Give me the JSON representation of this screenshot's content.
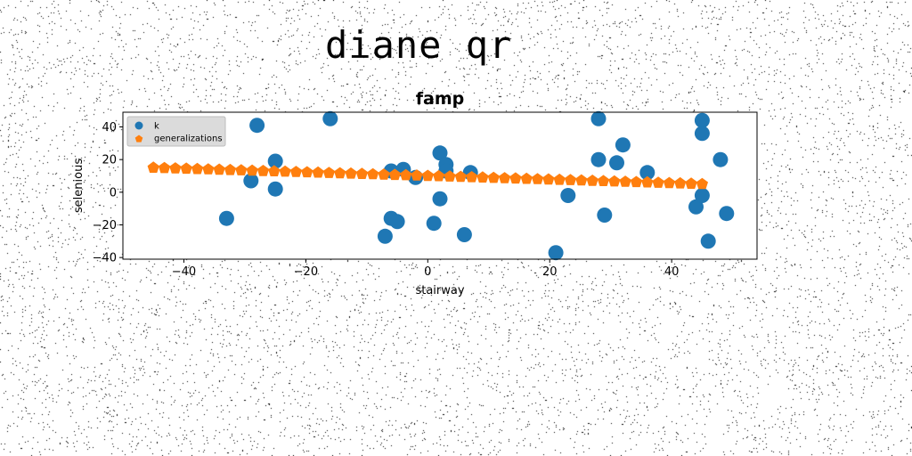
{
  "figure": {
    "suptitle": "diane qr"
  },
  "chart_data": {
    "type": "scatter",
    "title": "famp",
    "xlabel": "stairway",
    "ylabel": "selenious",
    "xlim": [
      -50,
      54
    ],
    "ylim": [
      -41,
      49
    ],
    "xticks": [
      -40,
      -20,
      0,
      20,
      40
    ],
    "yticks": [
      -40,
      -20,
      0,
      20,
      40
    ],
    "grid": false,
    "legend_position": "top-left",
    "series": [
      {
        "name": "k",
        "color": "#1f77b4",
        "marker": "circle",
        "points": [
          [
            -33,
            -16
          ],
          [
            -29,
            7
          ],
          [
            -28,
            41
          ],
          [
            -25,
            19
          ],
          [
            -25,
            2
          ],
          [
            -16,
            45
          ],
          [
            -7,
            -27
          ],
          [
            -6,
            -16
          ],
          [
            -6,
            13
          ],
          [
            -5,
            -18
          ],
          [
            -4,
            14
          ],
          [
            -2,
            9
          ],
          [
            1,
            -19
          ],
          [
            2,
            24
          ],
          [
            2,
            -4
          ],
          [
            3,
            17
          ],
          [
            3,
            13
          ],
          [
            6,
            -26
          ],
          [
            7,
            12
          ],
          [
            21,
            -37
          ],
          [
            23,
            -2
          ],
          [
            28,
            45
          ],
          [
            28,
            20
          ],
          [
            29,
            -14
          ],
          [
            31,
            18
          ],
          [
            32,
            29
          ],
          [
            36,
            12
          ],
          [
            44,
            -9
          ],
          [
            45,
            44
          ],
          [
            45,
            36
          ],
          [
            45,
            -2
          ],
          [
            46,
            -30
          ],
          [
            48,
            20
          ],
          [
            49,
            -13
          ]
        ]
      },
      {
        "name": "generalizations",
        "color": "#ff7f0e",
        "marker": "pentagon",
        "points": [
          [
            -45,
            15.0
          ],
          [
            -43.2,
            14.8
          ],
          [
            -41.4,
            14.6
          ],
          [
            -39.6,
            14.4
          ],
          [
            -37.8,
            14.2
          ],
          [
            -36,
            14.0
          ],
          [
            -34.2,
            13.8
          ],
          [
            -32.4,
            13.6
          ],
          [
            -30.6,
            13.4
          ],
          [
            -28.8,
            13.2
          ],
          [
            -27,
            13.0
          ],
          [
            -25.2,
            12.8
          ],
          [
            -23.4,
            12.6
          ],
          [
            -21.6,
            12.4
          ],
          [
            -19.8,
            12.2
          ],
          [
            -18,
            12.0
          ],
          [
            -16.2,
            11.8
          ],
          [
            -14.4,
            11.6
          ],
          [
            -12.6,
            11.4
          ],
          [
            -10.8,
            11.2
          ],
          [
            -9,
            11.0
          ],
          [
            -7.2,
            10.8
          ],
          [
            -5.4,
            10.6
          ],
          [
            -3.6,
            10.4
          ],
          [
            -1.8,
            10.2
          ],
          [
            0,
            10.0
          ],
          [
            1.8,
            9.8
          ],
          [
            3.6,
            9.6
          ],
          [
            5.4,
            9.4
          ],
          [
            7.2,
            9.2
          ],
          [
            9,
            9.0
          ],
          [
            10.8,
            8.8
          ],
          [
            12.6,
            8.6
          ],
          [
            14.4,
            8.4
          ],
          [
            16.2,
            8.2
          ],
          [
            18,
            8.0
          ],
          [
            19.8,
            7.8
          ],
          [
            21.6,
            7.6
          ],
          [
            23.4,
            7.4
          ],
          [
            25.2,
            7.2
          ],
          [
            27,
            7.0
          ],
          [
            28.8,
            6.8
          ],
          [
            30.6,
            6.6
          ],
          [
            32.4,
            6.4
          ],
          [
            34.2,
            6.2
          ],
          [
            36,
            6.0
          ],
          [
            37.8,
            5.8
          ],
          [
            39.6,
            5.6
          ],
          [
            41.4,
            5.4
          ],
          [
            43.2,
            5.2
          ],
          [
            45,
            5.0
          ]
        ]
      }
    ]
  }
}
